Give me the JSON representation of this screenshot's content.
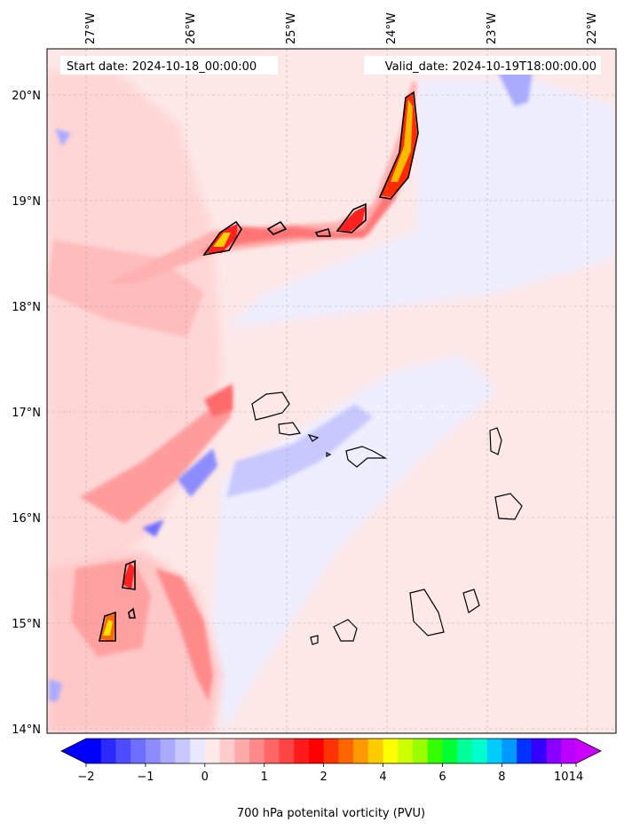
{
  "annotations": {
    "start_date": "Start date: 2024-10-18_00:00:00",
    "valid_date": "Valid_date: 2024-10-19T18:00:00.00"
  },
  "map": {
    "lon_ticks": [
      "27°W",
      "26°W",
      "25°W",
      "24°W",
      "23°W",
      "22°W"
    ],
    "lat_ticks": [
      "20°N",
      "19°N",
      "18°N",
      "17°N",
      "16°N",
      "15°N",
      "14°N"
    ],
    "land_feature": "Cape Verde islands coastline",
    "background_color": "#fde8e8"
  },
  "colorbar": {
    "label": "700 hPa potenital vorticity (PVU)",
    "tick_labels": [
      "−2",
      "−1",
      "0",
      "1",
      "2",
      "4",
      "6",
      "8",
      "10",
      "14"
    ],
    "colors": [
      "#0000ff",
      "#2a2aff",
      "#4d4dff",
      "#6e6eff",
      "#8c8cff",
      "#aaaaff",
      "#c8c8ff",
      "#e8e8ff",
      "#ffeaea",
      "#ffcccc",
      "#ffaaaa",
      "#ff8888",
      "#ff6666",
      "#ff4444",
      "#ff1a1a",
      "#ff0000",
      "#ff3300",
      "#ff6600",
      "#ff9900",
      "#ffcc00",
      "#ffff00",
      "#ccff00",
      "#99ff00",
      "#33ff00",
      "#00ff33",
      "#00ff99",
      "#00ffcc",
      "#00ccff",
      "#0099ff",
      "#0033ff",
      "#3300ff",
      "#8800ff",
      "#bb00ff"
    ],
    "under_color": "#0000ff",
    "over_color": "#cc00ff"
  }
}
